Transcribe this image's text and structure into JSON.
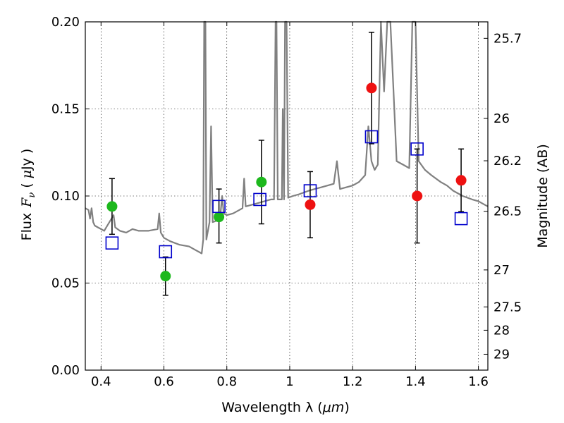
{
  "chart_data": {
    "type": "scatter",
    "xlabel_text": "Wavelength  λ (",
    "xlabel_unit": "μm",
    "xlabel_close": ")",
    "ylabel_prefix": "Flux",
    "ylabel_var": "F",
    "ylabel_sub": "ν",
    "ylabel_unit_open": "( ",
    "ylabel_unit_mu": "μ",
    "ylabel_unit_rest": "Jy )",
    "y2label": "Magnitude (AB)",
    "xlim": [
      0.35,
      1.63
    ],
    "ylim": [
      0.0,
      0.2
    ],
    "grid": true,
    "x_ticks": [
      0.4,
      0.6,
      0.8,
      1.0,
      1.2,
      1.4,
      1.6
    ],
    "x_tick_labels": [
      "0.4",
      "0.6",
      "0.8",
      "1",
      "1.2",
      "1.4",
      "1.6"
    ],
    "y_ticks": [
      0.0,
      0.05,
      0.1,
      0.15,
      0.2
    ],
    "y_tick_labels": [
      "0.00",
      "0.05",
      "0.10",
      "0.15",
      "0.20"
    ],
    "y2_ticks": [
      {
        "label": "25.7",
        "value": 25.7
      },
      {
        "label": "26",
        "value": 26.0
      },
      {
        "label": "26.2",
        "value": 26.2
      },
      {
        "label": "26.5",
        "value": 26.5
      },
      {
        "label": "27",
        "value": 27.0
      },
      {
        "label": "27.5",
        "value": 27.5
      },
      {
        "label": "28",
        "value": 28.0
      },
      {
        "label": "29",
        "value": 29.0
      }
    ],
    "colors": {
      "spectrum": "#808080",
      "green": "#1db81d",
      "red": "#ee1111",
      "model_box": "#0000cc",
      "errorbar": "#000000"
    },
    "series": [
      {
        "marker": "circle-green",
        "points": [
          {
            "x": 0.435,
            "y": 0.094,
            "lo": 0.078,
            "hi": 0.11
          },
          {
            "x": 0.605,
            "y": 0.054,
            "lo": 0.043,
            "hi": 0.065
          },
          {
            "x": 0.775,
            "y": 0.088,
            "lo": 0.073,
            "hi": 0.104
          },
          {
            "x": 0.91,
            "y": 0.108,
            "lo": 0.084,
            "hi": 0.132
          }
        ]
      },
      {
        "marker": "circle-red",
        "points": [
          {
            "x": 1.065,
            "y": 0.095,
            "lo": 0.076,
            "hi": 0.114
          },
          {
            "x": 1.26,
            "y": 0.162,
            "lo": 0.13,
            "hi": 0.194
          },
          {
            "x": 1.405,
            "y": 0.1,
            "lo": 0.073,
            "hi": 0.127
          },
          {
            "x": 1.545,
            "y": 0.109,
            "lo": 0.091,
            "hi": 0.127
          }
        ]
      },
      {
        "marker": "open-square-blue",
        "points": [
          {
            "x": 0.435,
            "y": 0.073
          },
          {
            "x": 0.605,
            "y": 0.068
          },
          {
            "x": 0.775,
            "y": 0.094
          },
          {
            "x": 0.905,
            "y": 0.098
          },
          {
            "x": 1.065,
            "y": 0.103
          },
          {
            "x": 1.26,
            "y": 0.134
          },
          {
            "x": 1.405,
            "y": 0.127
          },
          {
            "x": 1.545,
            "y": 0.087
          }
        ]
      }
    ],
    "spectrum": [
      [
        0.35,
        0.093
      ],
      [
        0.36,
        0.092
      ],
      [
        0.365,
        0.087
      ],
      [
        0.37,
        0.093
      ],
      [
        0.375,
        0.085
      ],
      [
        0.38,
        0.083
      ],
      [
        0.39,
        0.082
      ],
      [
        0.4,
        0.081
      ],
      [
        0.41,
        0.08
      ],
      [
        0.42,
        0.083
      ],
      [
        0.43,
        0.086
      ],
      [
        0.44,
        0.089
      ],
      [
        0.445,
        0.082
      ],
      [
        0.46,
        0.08
      ],
      [
        0.48,
        0.079
      ],
      [
        0.5,
        0.081
      ],
      [
        0.52,
        0.08
      ],
      [
        0.55,
        0.08
      ],
      [
        0.58,
        0.081
      ],
      [
        0.585,
        0.09
      ],
      [
        0.59,
        0.079
      ],
      [
        0.6,
        0.076
      ],
      [
        0.62,
        0.074
      ],
      [
        0.65,
        0.072
      ],
      [
        0.68,
        0.071
      ],
      [
        0.7,
        0.069
      ],
      [
        0.71,
        0.068
      ],
      [
        0.72,
        0.067
      ],
      [
        0.725,
        0.075
      ],
      [
        0.728,
        0.2
      ],
      [
        0.732,
        0.2
      ],
      [
        0.735,
        0.075
      ],
      [
        0.745,
        0.085
      ],
      [
        0.75,
        0.14
      ],
      [
        0.755,
        0.085
      ],
      [
        0.77,
        0.086
      ],
      [
        0.78,
        0.09
      ],
      [
        0.785,
        0.1
      ],
      [
        0.79,
        0.09
      ],
      [
        0.8,
        0.089
      ],
      [
        0.82,
        0.09
      ],
      [
        0.84,
        0.092
      ],
      [
        0.85,
        0.093
      ],
      [
        0.855,
        0.11
      ],
      [
        0.86,
        0.094
      ],
      [
        0.88,
        0.095
      ],
      [
        0.9,
        0.096
      ],
      [
        0.92,
        0.097
      ],
      [
        0.94,
        0.098
      ],
      [
        0.95,
        0.098
      ],
      [
        0.955,
        0.2
      ],
      [
        0.958,
        0.2
      ],
      [
        0.962,
        0.098
      ],
      [
        0.975,
        0.098
      ],
      [
        0.978,
        0.15
      ],
      [
        0.982,
        0.098
      ],
      [
        0.985,
        0.2
      ],
      [
        0.99,
        0.2
      ],
      [
        0.995,
        0.099
      ],
      [
        1.01,
        0.1
      ],
      [
        1.03,
        0.101
      ],
      [
        1.06,
        0.103
      ],
      [
        1.08,
        0.104
      ],
      [
        1.1,
        0.105
      ],
      [
        1.12,
        0.106
      ],
      [
        1.14,
        0.107
      ],
      [
        1.15,
        0.12
      ],
      [
        1.16,
        0.104
      ],
      [
        1.2,
        0.106
      ],
      [
        1.22,
        0.108
      ],
      [
        1.24,
        0.112
      ],
      [
        1.25,
        0.14
      ],
      [
        1.26,
        0.12
      ],
      [
        1.27,
        0.115
      ],
      [
        1.28,
        0.118
      ],
      [
        1.29,
        0.2
      ],
      [
        1.3,
        0.16
      ],
      [
        1.31,
        0.2
      ],
      [
        1.32,
        0.2
      ],
      [
        1.33,
        0.16
      ],
      [
        1.34,
        0.12
      ],
      [
        1.36,
        0.118
      ],
      [
        1.38,
        0.116
      ],
      [
        1.39,
        0.2
      ],
      [
        1.4,
        0.2
      ],
      [
        1.41,
        0.12
      ],
      [
        1.43,
        0.115
      ],
      [
        1.45,
        0.112
      ],
      [
        1.48,
        0.108
      ],
      [
        1.5,
        0.106
      ],
      [
        1.52,
        0.103
      ],
      [
        1.55,
        0.1
      ],
      [
        1.58,
        0.098
      ],
      [
        1.6,
        0.097
      ],
      [
        1.62,
        0.095
      ],
      [
        1.63,
        0.094
      ]
    ]
  }
}
